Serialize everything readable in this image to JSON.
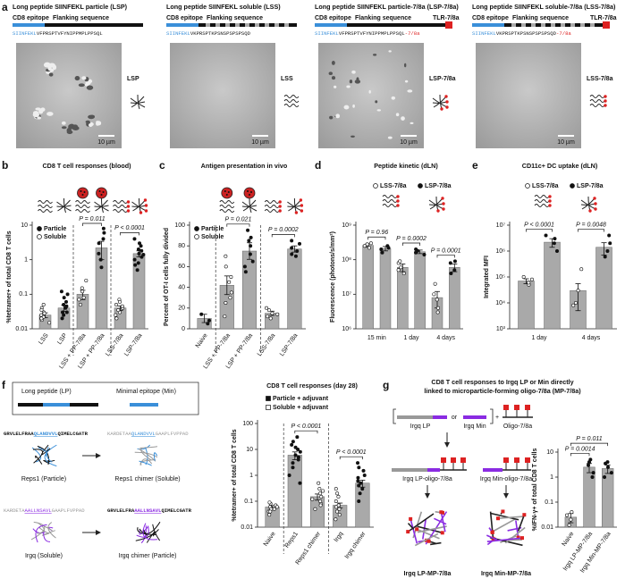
{
  "panel_a": {
    "label": "a",
    "items": [
      {
        "title": "Long peptide SIINFEKL particle (LSP)",
        "epitope_label": "CD8 epitope",
        "flank_label": "Flanking sequence",
        "epitope": "SIINFEKL",
        "flank": "VFPRSPTVFYNIPPMPLPPSQL",
        "name": "LSP",
        "scale": "10 µm"
      },
      {
        "title": "Long peptide SIINFEKL soluble (LSS)",
        "epitope_label": "CD8 epitope",
        "flank_label": "Flanking sequence",
        "epitope": "SIINFEKL",
        "flank": "VKPRSPTKPSNSPSPSPSQD",
        "name": "LSS",
        "scale": "10 µm"
      },
      {
        "title": "Long peptide SIINFEKL particle-7/8a (LSP-7/8a)",
        "epitope_label": "CD8 epitope",
        "flank_label": "Flanking sequence",
        "tlr_label": "TLR-7/8a",
        "epitope": "SIINFEKL",
        "flank": "VFPRSPTVFYNIPPMPLPPSQL",
        "conjugate": "-7/8a",
        "name": "LSP-7/8a",
        "scale": "10 µm"
      },
      {
        "title": "Long peptide SIINFEKL soluble-7/8a (LSS-7/8a)",
        "epitope_label": "CD8 epitope",
        "flank_label": "Flanking sequence",
        "tlr_label": "TLR-7/8a",
        "epitope": "SIINFEKL",
        "flank": "VKPRSPTKPSNSPSPSPSQD",
        "conjugate": "-7/8a",
        "name": "LSS-7/8a",
        "scale": "10 µm"
      }
    ]
  },
  "chart_data": [
    {
      "type": "bar",
      "panel": "b",
      "title": "CD8 T cell responses (blood)",
      "ylabel": "%tetramer+ of total CD8 T cells",
      "log": true,
      "ylim": [
        0.01,
        10
      ],
      "yticks": [
        0.01,
        0.1,
        1,
        10
      ],
      "legend": "upper left",
      "color": "#a9a9a9",
      "categories": [
        "LSS",
        "LSP",
        "LSS + PP-7/8a",
        "LSP + PP-7/8a",
        "LSS-7/8a",
        "LSP-7/8a"
      ],
      "series": [
        {
          "name": "Particle",
          "filled": true,
          "values": [
            null,
            0.04,
            null,
            2.2,
            null,
            1.5
          ],
          "errors": [
            null,
            0.008,
            null,
            1.2,
            null,
            0.3
          ],
          "points": [
            null,
            [
              0.02,
              0.03,
              0.05,
              0.08,
              0.1,
              0.04,
              0.03,
              0.06,
              0.025,
              0.12,
              0.045
            ],
            null,
            [
              0.6,
              1,
              3,
              6,
              4,
              1.5,
              8
            ],
            null,
            [
              0.5,
              1,
              1.5,
              2,
              3,
              4,
              1.2,
              0.8,
              2.5,
              1.8,
              0.7,
              1.4
            ]
          ]
        },
        {
          "name": "Soluble",
          "filled": false,
          "values": [
            0.025,
            null,
            0.1,
            null,
            0.04,
            null
          ],
          "errors": [
            0.004,
            null,
            0.03,
            null,
            0.006,
            null
          ],
          "points": [
            [
              0.015,
              0.02,
              0.03,
              0.025,
              0.04,
              0.018,
              0.022,
              0.035,
              0.05,
              0.02,
              0.028
            ],
            null,
            [
              0.05,
              0.08,
              0.15,
              0.12,
              0.25,
              0.07
            ],
            null,
            [
              0.02,
              0.03,
              0.04,
              0.05,
              0.07,
              0.035,
              0.025,
              0.06,
              0.045
            ],
            null
          ]
        }
      ],
      "p_values": [
        "P = 0.011",
        "P < 0.0001"
      ]
    },
    {
      "type": "bar",
      "panel": "c",
      "title": "Antigen presentation in vivo",
      "ylabel": "Percent of OT-I cells fully divided",
      "log": false,
      "ylim": [
        0,
        100
      ],
      "yticks": [
        0,
        20,
        40,
        60,
        80,
        100
      ],
      "legend": "upper left",
      "color": "#a9a9a9",
      "categories": [
        "Naive",
        "LSS + PP-7/8a",
        "LSP + PP-7/8a",
        "LSS-7/8a",
        "LSP-7/8a"
      ],
      "series": [
        {
          "name": "Particle",
          "filled": true,
          "values": [
            10,
            null,
            75,
            null,
            77
          ],
          "errors": [
            4,
            null,
            8,
            null,
            3
          ],
          "points": [
            [
              5,
              8,
              14
            ],
            null,
            [
              55,
              65,
              72,
              80,
              95,
              88,
              60,
              85
            ],
            null,
            [
              70,
              72,
              78,
              82,
              85,
              75
            ]
          ]
        },
        {
          "name": "Soluble",
          "filled": false,
          "values": [
            null,
            42,
            null,
            15,
            null
          ],
          "errors": [
            null,
            9,
            null,
            2,
            null
          ],
          "points": [
            null,
            [
              12,
              25,
              35,
              45,
              50,
              60,
              70,
              30
            ],
            null,
            [
              10,
              12,
              15,
              18,
              20,
              14
            ],
            null
          ]
        }
      ],
      "p_values": [
        "P = 0.021",
        "P = 0.0002"
      ]
    },
    {
      "type": "bar",
      "panel": "d",
      "title": "Peptide kinetic (dLN)",
      "ylabel": "Fluorescence (photons/s/mm²)",
      "log": true,
      "ylim": [
        1000000,
        1000000000
      ],
      "yticks": [
        {
          "value": 1000000,
          "label": "10⁶"
        },
        {
          "value": 10000000,
          "label": "10⁷"
        },
        {
          "value": 100000000,
          "label": "10⁸"
        },
        {
          "value": 1000000000,
          "label": "10⁹"
        }
      ],
      "legend": "top",
      "color": "#a9a9a9",
      "categories": [
        "15 min",
        "1 day",
        "4 days"
      ],
      "series": [
        {
          "name": "LSS-7/8a",
          "filled": false,
          "values": [
            260000000,
            60000000,
            8000000
          ],
          "errors": [
            30000000,
            15000000,
            4000000
          ],
          "points": [
            [
              220000000,
              280000000,
              300000000,
              250000000
            ],
            [
              40000000,
              50000000,
              80000000,
              90000000,
              60000000
            ],
            [
              3000000,
              4000000,
              10000000,
              20000000,
              7000000
            ]
          ]
        },
        {
          "name": "LSP-7/8a",
          "filled": true,
          "values": [
            210000000,
            170000000,
            60000000
          ],
          "errors": [
            30000000,
            20000000,
            15000000
          ],
          "points": [
            [
              160000000,
              200000000,
              250000000,
              220000000
            ],
            [
              140000000,
              160000000,
              200000000,
              180000000
            ],
            [
              40000000,
              50000000,
              80000000,
              90000000
            ]
          ]
        }
      ],
      "p_values": [
        "P = 0.96",
        "P = 0.0002",
        "P = 0.0001"
      ]
    },
    {
      "type": "bar",
      "panel": "e",
      "title": "CD11c+ DC uptake (dLN)",
      "ylabel": "Integrated MFI",
      "log": true,
      "ylim": [
        1000,
        10000000
      ],
      "yticks": [
        {
          "value": 1000,
          "label": "10³"
        },
        {
          "value": 10000,
          "label": "10⁴"
        },
        {
          "value": 100000,
          "label": "10⁵"
        },
        {
          "value": 1000000,
          "label": "10⁶"
        },
        {
          "value": 10000000,
          "label": "10⁷"
        }
      ],
      "legend": "top",
      "color": "#a9a9a9",
      "categories": [
        "1 day",
        "4 days"
      ],
      "series": [
        {
          "name": "LSS-7/8a",
          "filled": false,
          "values": [
            70000,
            30000
          ],
          "errors": [
            15000,
            25000
          ],
          "points": [
            [
              50000,
              60000,
              80000,
              100000
            ],
            [
              8000,
              10000,
              30000,
              200000
            ]
          ]
        },
        {
          "name": "LSP-7/8a",
          "filled": true,
          "values": [
            2200000,
            1400000
          ],
          "errors": [
            800000,
            700000
          ],
          "points": [
            [
              1000000,
              2000000,
              3000000,
              4000000
            ],
            [
              600000,
              1000000,
              2000000,
              4000000
            ]
          ]
        }
      ],
      "p_values": [
        "P < 0.0001",
        "P = 0.0048"
      ]
    },
    {
      "type": "bar",
      "title": "CD8 T cell responses (day 28)",
      "ylabel": "%tetramer+ of total CD8 T cells",
      "log": true,
      "ylim": [
        0.01,
        100
      ],
      "yticks": [
        0.01,
        0.1,
        1,
        10,
        100
      ],
      "legend": "top",
      "legend_marker": "square",
      "color": "#a9a9a9",
      "categories": [
        "Naive",
        "Reps1",
        "Reps1 chimer",
        "Irgq",
        "Irgq chimer"
      ],
      "series": [
        {
          "name": "Particle + adjuvant",
          "filled": true,
          "values": [
            null,
            6,
            null,
            null,
            0.5
          ],
          "errors": [
            null,
            2,
            null,
            null,
            0.15
          ],
          "points": [
            null,
            [
              0.5,
              1,
              2,
              3,
              5,
              8,
              10,
              15,
              20,
              30,
              6,
              4,
              12
            ],
            null,
            null,
            [
              0.1,
              0.2,
              0.3,
              0.5,
              0.8,
              1,
              2,
              3,
              0.4,
              0.6,
              1.5
            ]
          ]
        },
        {
          "name": "Soluble + adjuvant",
          "filled": false,
          "values": [
            0.06,
            null,
            0.15,
            0.07,
            null
          ],
          "errors": [
            0.008,
            null,
            0.04,
            0.015,
            null
          ],
          "points": [
            [
              0.03,
              0.04,
              0.05,
              0.06,
              0.07,
              0.08,
              0.05,
              0.09,
              0.04,
              0.06
            ],
            null,
            [
              0.05,
              0.08,
              0.1,
              0.15,
              0.2,
              0.3,
              0.5,
              0.12,
              0.07,
              0.25
            ],
            [
              0.02,
              0.03,
              0.05,
              0.07,
              0.1,
              0.15,
              0.2,
              0.04,
              0.06,
              0.3
            ],
            null
          ]
        }
      ],
      "p_values": [
        "P < 0.0001",
        "P < 0.0001"
      ]
    },
    {
      "type": "bar",
      "ylabel": "%IFN-γ+ of total CD8 T cells",
      "log": true,
      "ylim": [
        0.01,
        10
      ],
      "yticks": [
        0.01,
        0.1,
        1,
        10
      ],
      "color": "#a9a9a9",
      "categories": [
        "Naive",
        "Irgq LP-MP-7/8a",
        "Irgq Min-MP-7/8a"
      ],
      "series": [
        {
          "filled": false,
          "values": [
            0.025,
            null,
            null
          ],
          "errors": [
            0.01,
            null,
            null
          ],
          "points": [
            [
              0.012,
              0.02,
              0.03,
              0.04
            ],
            null,
            null
          ]
        },
        {
          "filled": true,
          "values": [
            null,
            2.5,
            2.2
          ],
          "errors": [
            null,
            1,
            0.8
          ],
          "points": [
            null,
            [
              1,
              1.5,
              3,
              4,
              5
            ],
            [
              1,
              1.5,
              2.5,
              3.5,
              4
            ]
          ]
        }
      ],
      "p_values": [
        "P = 0.0014",
        "P = 0.011"
      ]
    }
  ],
  "panel_f": {
    "label": "f",
    "lp_label": "Long peptide (LP)",
    "min_label": "Minimal epitope (Min)",
    "peptides": [
      {
        "seq": [
          "GRVLELFRAA",
          "QLANDVVL",
          "QIMELCGATR"
        ],
        "name": "Reps1 (Particle)"
      },
      {
        "seq": [
          "KARDETAA",
          "QLANDVVL",
          "GAAPLFVPPAD"
        ],
        "name": "Reps1 chimer (Soluble)"
      },
      {
        "seq": [
          "KARDETA",
          "AALLNSAVL",
          "GAAPLFVPPAD"
        ],
        "name": "Irgq (Soluble)"
      },
      {
        "seq": [
          "GRVLELFRA",
          "AALLNSAVL",
          "QIMELCGATR"
        ],
        "name": "Irgq chimer (Particle)"
      }
    ]
  },
  "panel_g": {
    "label": "g",
    "title": [
      "CD8 T cell responses to Irgq LP or Min directly",
      "linked to microparticle-forming oligo-7/8a (MP-7/8a)"
    ],
    "lp": "Irgq LP",
    "or": "or",
    "min": "Irgq Min",
    "plus": "+",
    "oligo": "Oligo-7/8a",
    "lp_conj": "Irgq LP-oligo-7/8a",
    "min_conj": "Irgq Min-oligo-7/8a",
    "lp_mp": "Irgq LP-MP-7/8a",
    "min_mp": "Irgq Min-MP-7/8a"
  }
}
